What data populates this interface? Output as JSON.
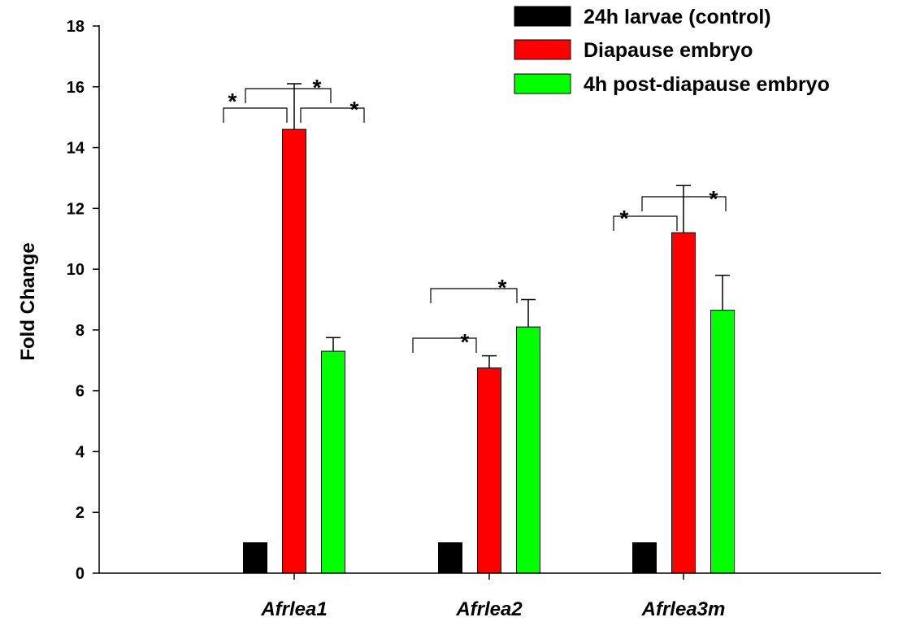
{
  "chart_data": {
    "type": "bar",
    "title": "",
    "xlabel": "",
    "ylabel": "Fold Change",
    "ylim": [
      0,
      18
    ],
    "yticks": [
      0,
      2,
      4,
      6,
      8,
      10,
      12,
      14,
      16,
      18
    ],
    "categories": [
      "Afrlea1",
      "Afrlea2",
      "Afrlea3m"
    ],
    "legend_position": "top-right",
    "grid": false,
    "series": [
      {
        "name": "24h larvae (control)",
        "color": "#000000",
        "values": [
          1.0,
          1.0,
          1.0
        ],
        "errors": [
          0,
          0,
          0
        ]
      },
      {
        "name": "Diapause embryo",
        "color": "#ff0000",
        "values": [
          14.6,
          6.75,
          11.2
        ],
        "errors": [
          1.5,
          0.4,
          1.55
        ]
      },
      {
        "name": "4h post-diapause embryo",
        "color": "#00ff00",
        "values": [
          7.3,
          8.1,
          8.65
        ],
        "errors": [
          0.45,
          0.9,
          1.15
        ]
      }
    ],
    "significance": [
      {
        "category": 0,
        "from": 0,
        "to": 1,
        "label": "*"
      },
      {
        "category": 0,
        "from": 0,
        "to": 2,
        "label": "*"
      },
      {
        "category": 0,
        "from": 1,
        "to": 2,
        "label": "*"
      },
      {
        "category": 1,
        "from": 0,
        "to": 1,
        "label": "*"
      },
      {
        "category": 1,
        "from": 0,
        "to": 2,
        "label": "*"
      },
      {
        "category": 2,
        "from": 0,
        "to": 1,
        "label": "*"
      },
      {
        "category": 2,
        "from": 0,
        "to": 2,
        "label": "*"
      }
    ]
  }
}
